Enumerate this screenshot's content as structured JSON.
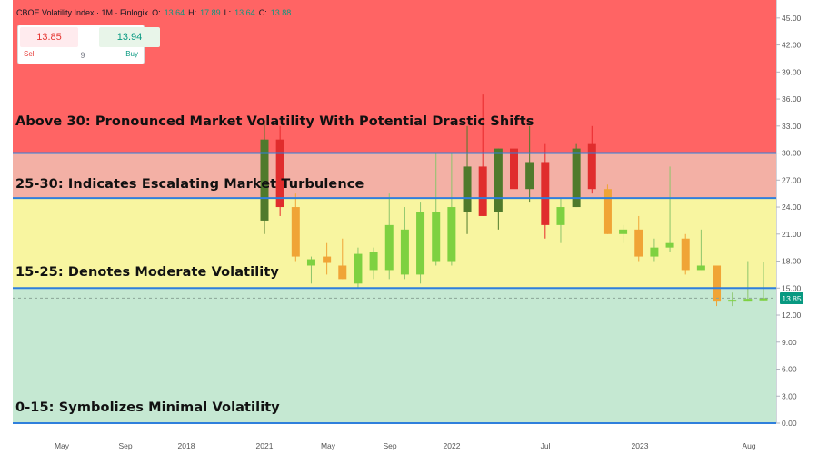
{
  "header": {
    "symbol": "CBOE Volatility Index · 1M · Finlogix",
    "open_label": "O:",
    "open": "13.64",
    "high_label": "H:",
    "high": "17.89",
    "low_label": "L:",
    "low": "13.64",
    "close_label": "C:",
    "close": "13.88"
  },
  "trade_panel": {
    "sell_price": "13.85",
    "buy_price": "13.94",
    "sell_label": "Sell",
    "buy_label": "Buy",
    "quantity": "9"
  },
  "zone_labels": [
    "Above 30: Pronounced Market Volatility With Potential Drastic Shifts",
    "25-30: Indicates Escalating Market Turbulence",
    "15-25: Denotes Moderate Volatility",
    "0-15: Symbolizes Minimal Volatility"
  ],
  "last_price_badge": "13.85",
  "colors": {
    "zone_high": "#ff6464",
    "zone_turbulent": "#f3b0a5",
    "zone_moderate": "#f8f5a0",
    "zone_low": "#c5e8d2",
    "threshold_line": "#2f7fdc",
    "last_badge": "#089981"
  },
  "chart_data": {
    "type": "candlestick",
    "ylim": [
      0,
      47
    ],
    "y_ticks": [
      "0.00",
      "3.00",
      "6.00",
      "9.00",
      "12.00",
      "15.00",
      "18.00",
      "21.00",
      "24.00",
      "27.00",
      "30.00",
      "33.00",
      "36.00",
      "39.00",
      "42.00",
      "45.00"
    ],
    "x_ticks": [
      "May",
      "Sep",
      "2018",
      "2021",
      "May",
      "Sep",
      "2022",
      "Jul",
      "2023",
      "Aug"
    ],
    "thresholds": [
      0,
      15,
      25,
      30
    ],
    "last_value": 13.88,
    "candles": [
      {
        "o": 22.5,
        "h": 33.5,
        "l": 21.0,
        "c": 31.5
      },
      {
        "o": 31.5,
        "h": 33.0,
        "l": 23.0,
        "c": 24.0
      },
      {
        "o": 24.0,
        "h": 25.5,
        "l": 18.0,
        "c": 18.5
      },
      {
        "o": 17.5,
        "h": 18.5,
        "l": 15.5,
        "c": 18.2
      },
      {
        "o": 18.5,
        "h": 20.0,
        "l": 16.5,
        "c": 17.8
      },
      {
        "o": 17.5,
        "h": 20.5,
        "l": 16.0,
        "c": 16.0
      },
      {
        "o": 15.5,
        "h": 19.5,
        "l": 15.0,
        "c": 18.8
      },
      {
        "o": 17.0,
        "h": 19.5,
        "l": 16.0,
        "c": 19.0
      },
      {
        "o": 17.0,
        "h": 25.5,
        "l": 16.0,
        "c": 22.0
      },
      {
        "o": 16.5,
        "h": 24.0,
        "l": 16.0,
        "c": 21.5
      },
      {
        "o": 16.5,
        "h": 24.5,
        "l": 15.5,
        "c": 23.5
      },
      {
        "o": 18.0,
        "h": 30.0,
        "l": 17.5,
        "c": 23.5
      },
      {
        "o": 18.0,
        "h": 30.0,
        "l": 17.5,
        "c": 24.0
      },
      {
        "o": 23.5,
        "h": 33.0,
        "l": 21.0,
        "c": 28.5
      },
      {
        "o": 28.5,
        "h": 36.5,
        "l": 23.0,
        "c": 23.0
      },
      {
        "o": 23.5,
        "h": 30.5,
        "l": 21.5,
        "c": 30.5
      },
      {
        "o": 30.5,
        "h": 34.5,
        "l": 25.0,
        "c": 26.0
      },
      {
        "o": 26.0,
        "h": 33.0,
        "l": 24.5,
        "c": 29.0
      },
      {
        "o": 29.0,
        "h": 31.0,
        "l": 20.5,
        "c": 22.0
      },
      {
        "o": 22.0,
        "h": 25.0,
        "l": 20.0,
        "c": 24.0
      },
      {
        "o": 24.0,
        "h": 31.0,
        "l": 24.0,
        "c": 30.5
      },
      {
        "o": 31.0,
        "h": 33.0,
        "l": 25.5,
        "c": 26.0
      },
      {
        "o": 26.0,
        "h": 26.5,
        "l": 21.0,
        "c": 21.0
      },
      {
        "o": 21.0,
        "h": 22.0,
        "l": 20.0,
        "c": 21.5
      },
      {
        "o": 21.5,
        "h": 23.0,
        "l": 18.0,
        "c": 18.5
      },
      {
        "o": 18.5,
        "h": 20.5,
        "l": 18.0,
        "c": 19.5
      },
      {
        "o": 19.5,
        "h": 28.5,
        "l": 19.0,
        "c": 20.0
      },
      {
        "o": 20.5,
        "h": 21.0,
        "l": 16.5,
        "c": 17.0
      },
      {
        "o": 17.0,
        "h": 21.5,
        "l": 17.0,
        "c": 17.5
      },
      {
        "o": 17.5,
        "h": 17.5,
        "l": 13.0,
        "c": 13.5
      },
      {
        "o": 13.5,
        "h": 14.5,
        "l": 13.0,
        "c": 13.7
      },
      {
        "o": 13.5,
        "h": 18.0,
        "l": 13.5,
        "c": 13.8
      },
      {
        "o": 13.64,
        "h": 17.89,
        "l": 13.64,
        "c": 13.88
      }
    ]
  }
}
